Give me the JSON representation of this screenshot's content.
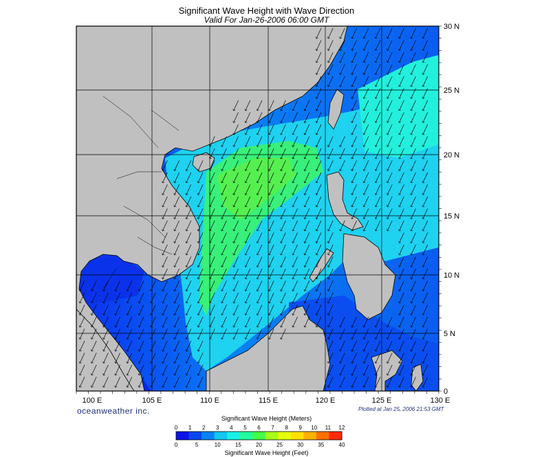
{
  "title": "Significant Wave Height with Wave Direction",
  "subtitle": "Valid For Jan-26-2006 06:00 GMT",
  "lon_labels": [
    "100 E",
    "105 E",
    "110 E",
    "115 E",
    "120 E",
    "125 E",
    "130 E"
  ],
  "lat_labels": [
    "30 N",
    "25 N",
    "20 N",
    "15 N",
    "10 N",
    "5 N",
    "0"
  ],
  "brand": "oceanweather inc.",
  "plotted_note": "Plotted at Jan 25, 2006 21:53 GMT",
  "colorbar": {
    "meters_title": "Significant Wave Height (Meters)",
    "feet_title": "Significant Wave Height (Feet)",
    "meters_ticks": [
      "0",
      "1",
      "2",
      "3",
      "4",
      "5",
      "6",
      "7",
      "8",
      "9",
      "10",
      "11",
      "12"
    ],
    "feet_ticks": [
      "0",
      "5",
      "10",
      "15",
      "20",
      "25",
      "30",
      "35",
      "40"
    ],
    "colors": [
      "#0a14e8",
      "#0a46f0",
      "#0a82f5",
      "#12c8f0",
      "#18f0e6",
      "#22ff9e",
      "#44ff44",
      "#a8ff18",
      "#e6ff0a",
      "#ffe000",
      "#ffb000",
      "#ff7000",
      "#ff2a0a"
    ]
  },
  "map": {
    "extent": {
      "lon": [
        100,
        130
      ],
      "lat": [
        0,
        30
      ]
    },
    "grid_interval_deg": 5,
    "land_color": "#c0c0c0",
    "wave_direction": "predominantly toward southwest"
  }
}
